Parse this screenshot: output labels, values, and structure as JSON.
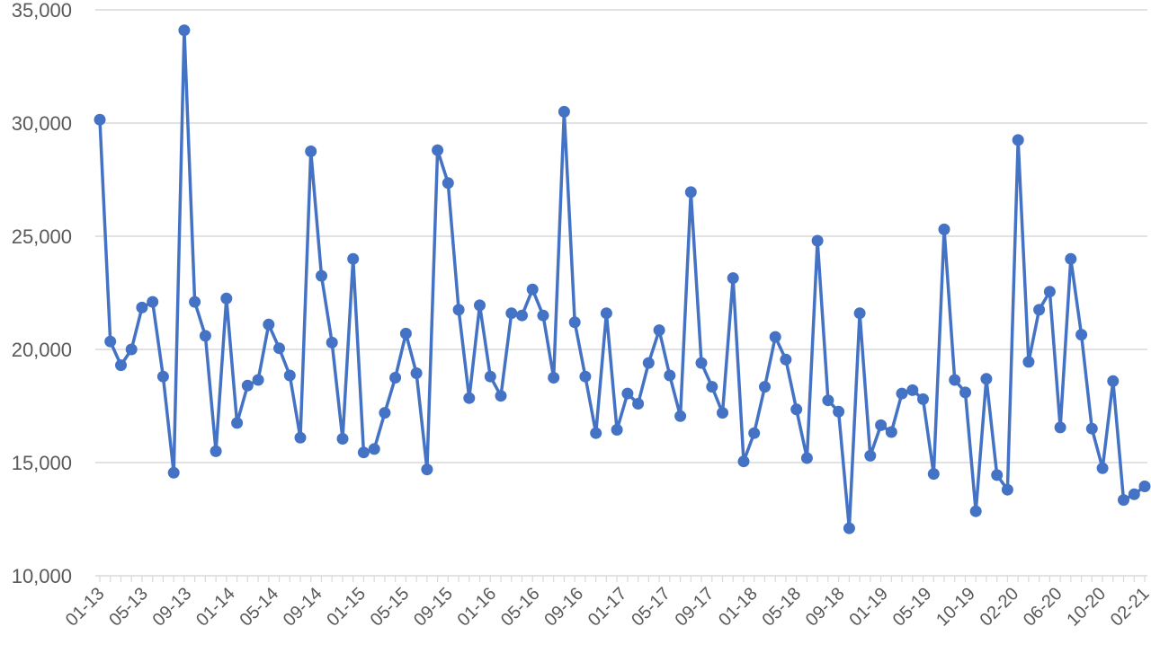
{
  "chart_data": {
    "type": "line",
    "title": "",
    "xlabel": "",
    "ylabel": "",
    "ylim": [
      10000,
      35000
    ],
    "y_ticks": [
      "10,000",
      "15,000",
      "20,000",
      "25,000",
      "30,000",
      "35,000"
    ],
    "x_tick_labels": [
      "01-13",
      "05-13",
      "09-13",
      "01-14",
      "05-14",
      "09-14",
      "01-15",
      "05-15",
      "09-15",
      "01-16",
      "05-16",
      "09-16",
      "01-17",
      "05-17",
      "09-17",
      "01-18",
      "05-18",
      "09-18",
      "01-19",
      "05-19",
      "10-19",
      "02-20",
      "06-20",
      "10-20",
      "02-21"
    ],
    "grid": "horizontal",
    "legend": "none",
    "color": "#4472C4",
    "series": [
      {
        "values": [
          30150,
          20350,
          19300,
          20000,
          21850,
          22100,
          18800,
          14550,
          34100,
          22100,
          20600,
          15500,
          22250,
          16750,
          18400,
          18650,
          21100,
          20050,
          18850,
          16100,
          28750,
          23250,
          20300,
          16050,
          24000,
          15450,
          15600,
          17200,
          18750,
          20700,
          18950,
          14700,
          28800,
          27350,
          21750,
          17850,
          21950,
          18800,
          17950,
          21600,
          21500,
          22650,
          21500,
          18750,
          30500,
          21200,
          18800,
          16300,
          21600,
          16450,
          18050,
          17600,
          19400,
          20850,
          18850,
          17050,
          26950,
          19400,
          18350,
          17200,
          23150,
          15050,
          16300,
          18350,
          20550,
          19550,
          17350,
          15200,
          24800,
          17750,
          17250,
          12100,
          21600,
          15300,
          16650,
          16350,
          18050,
          18200,
          17800,
          14500,
          25300,
          18650,
          18100,
          12850,
          18700,
          14450,
          13800,
          29250,
          19450,
          21750,
          22550,
          16550,
          24000,
          20650,
          16500,
          14750,
          18600,
          13350,
          13600,
          13950
        ]
      }
    ]
  }
}
